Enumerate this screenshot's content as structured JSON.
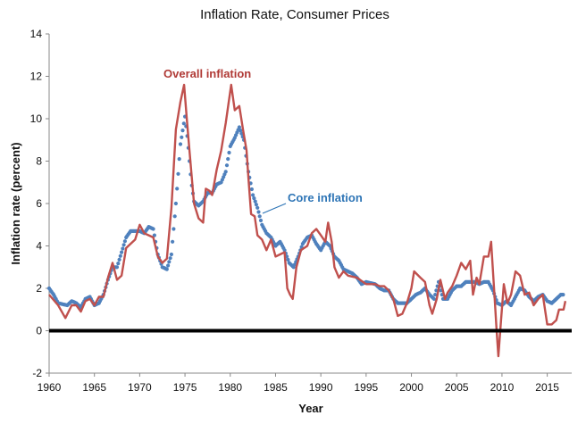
{
  "chart_data": {
    "type": "line",
    "title": "Inflation Rate, Consumer Prices",
    "xlabel": "Year",
    "ylabel": "Inflation rate (percent)",
    "xlim": [
      1960,
      2017.7
    ],
    "ylim": [
      -2,
      14
    ],
    "x_ticks": [
      1960,
      1965,
      1970,
      1975,
      1980,
      1985,
      1990,
      1995,
      2000,
      2005,
      2010,
      2015
    ],
    "y_ticks": [
      -2,
      0,
      2,
      4,
      6,
      8,
      10,
      12,
      14
    ],
    "grid": false,
    "zero_line": true,
    "colors": {
      "overall": "#c0504d",
      "core": "#4f81bd",
      "zero_line": "#000000"
    },
    "annotations": [
      {
        "text": "Overall inflation",
        "series": "overall"
      },
      {
        "text": "Core inflation",
        "series": "core"
      }
    ],
    "series": [
      {
        "name": "Overall inflation",
        "style": "solid-line",
        "x": [
          1960,
          1961,
          1961.8,
          1962.5,
          1963,
          1963.5,
          1964,
          1964.5,
          1965,
          1965.5,
          1966,
          1966.5,
          1967,
          1967.5,
          1968,
          1968.5,
          1969,
          1969.5,
          1970,
          1970.5,
          1971,
          1971.5,
          1972,
          1972.5,
          1973,
          1973.5,
          1974,
          1974.5,
          1974.9,
          1975.2,
          1975.5,
          1976,
          1976.5,
          1977,
          1977.3,
          1977.7,
          1978,
          1978.5,
          1979,
          1979.5,
          1980.1,
          1980.5,
          1981,
          1981.4,
          1981.8,
          1982,
          1982.3,
          1982.7,
          1983,
          1983.5,
          1984,
          1984.5,
          1985,
          1985.5,
          1986,
          1986.3,
          1986.6,
          1986.9,
          1987.3,
          1987.8,
          1988.5,
          1989,
          1989.5,
          1990,
          1990.5,
          1990.8,
          1991.2,
          1991.5,
          1992,
          1992.5,
          1993,
          1994,
          1995,
          1996,
          1996.5,
          1997,
          1997.5,
          1998,
          1998.5,
          1999,
          1999.5,
          2000,
          2000.3,
          2001,
          2001.5,
          2002,
          2002.3,
          2002.8,
          2003.2,
          2003.7,
          2004,
          2004.5,
          2005,
          2005.5,
          2006,
          2006.5,
          2006.8,
          2007.2,
          2007.5,
          2008,
          2008.5,
          2008.8,
          2009.2,
          2009.4,
          2009.6,
          2009.9,
          2010.2,
          2010.6,
          2011,
          2011.5,
          2012,
          2012.5,
          2013,
          2013.5,
          2014,
          2014.5,
          2015,
          2015.5,
          2016,
          2016.3,
          2016.8,
          2017
        ],
        "y": [
          1.7,
          1.2,
          0.6,
          1.2,
          1.2,
          0.9,
          1.4,
          1.5,
          1.2,
          1.6,
          1.6,
          2.5,
          3.2,
          2.4,
          2.6,
          3.9,
          4.1,
          4.3,
          5.0,
          4.6,
          4.5,
          4.4,
          3.5,
          3.2,
          3.4,
          5.8,
          9.5,
          10.8,
          11.6,
          10.0,
          8.5,
          6.0,
          5.3,
          5.1,
          6.7,
          6.6,
          6.4,
          7.6,
          8.5,
          9.8,
          11.6,
          10.4,
          10.6,
          9.5,
          8.5,
          7.2,
          5.5,
          5.4,
          4.5,
          4.3,
          3.8,
          4.3,
          3.5,
          3.6,
          3.7,
          2.0,
          1.7,
          1.5,
          3.0,
          3.8,
          4.0,
          4.6,
          4.8,
          4.5,
          4.2,
          5.1,
          4.2,
          3.0,
          2.5,
          2.8,
          2.6,
          2.5,
          2.2,
          2.2,
          2.1,
          2.1,
          1.9,
          1.5,
          0.7,
          0.8,
          1.3,
          2.0,
          2.8,
          2.5,
          2.3,
          1.2,
          0.8,
          1.5,
          2.4,
          1.5,
          1.8,
          2.1,
          2.6,
          3.2,
          2.9,
          3.3,
          1.7,
          2.5,
          2.2,
          3.5,
          3.5,
          4.2,
          1.5,
          0.1,
          -1.2,
          0.5,
          2.2,
          1.3,
          1.7,
          2.8,
          2.6,
          1.7,
          1.8,
          1.2,
          1.5,
          1.7,
          0.3,
          0.3,
          0.5,
          1.0,
          1.0,
          1.4
        ]
      },
      {
        "name": "Core inflation",
        "style": "dotted",
        "x": [
          1960,
          1960.5,
          1961,
          1962,
          1962.5,
          1963,
          1963.5,
          1964,
          1964.5,
          1965,
          1965.5,
          1966,
          1966.5,
          1967,
          1967.5,
          1968,
          1968.5,
          1969,
          1969.5,
          1970,
          1970.5,
          1971,
          1971.5,
          1972,
          1972.5,
          1973,
          1973.5,
          1974,
          1974.5,
          1975,
          1975.3,
          1975.7,
          1976,
          1976.5,
          1977,
          1977.5,
          1978,
          1978.5,
          1979,
          1979.5,
          1980,
          1980.5,
          1981,
          1981.5,
          1982,
          1982.5,
          1983,
          1983.5,
          1984,
          1984.5,
          1985,
          1985.5,
          1986,
          1986.5,
          1987,
          1987.5,
          1988,
          1988.5,
          1989,
          1989.5,
          1990,
          1990.5,
          1991,
          1991.5,
          1992,
          1992.5,
          1993,
          1993.5,
          1994,
          1994.5,
          1995,
          1996,
          1996.5,
          1997,
          1997.5,
          1998,
          1998.5,
          1999,
          1999.5,
          2000,
          2000.5,
          2001,
          2001.5,
          2002,
          2002.5,
          2003,
          2003.5,
          2004,
          2004.5,
          2005,
          2005.5,
          2006,
          2006.5,
          2007,
          2007.5,
          2008,
          2008.5,
          2009,
          2009.5,
          2010,
          2010.5,
          2011,
          2011.5,
          2012,
          2012.5,
          2013,
          2013.5,
          2014,
          2014.5,
          2015,
          2015.5,
          2016,
          2016.5,
          2016.8
        ],
        "y": [
          2.0,
          1.7,
          1.3,
          1.2,
          1.4,
          1.3,
          1.1,
          1.5,
          1.6,
          1.2,
          1.3,
          1.7,
          2.4,
          3.0,
          3.0,
          3.7,
          4.4,
          4.7,
          4.7,
          4.7,
          4.6,
          4.9,
          4.8,
          3.6,
          3.0,
          2.9,
          3.6,
          6.0,
          8.8,
          10.1,
          9.0,
          7.0,
          6.1,
          5.9,
          6.1,
          6.5,
          6.5,
          6.9,
          7.0,
          7.5,
          8.7,
          9.1,
          9.6,
          9.0,
          7.5,
          6.4,
          5.8,
          5.0,
          4.6,
          4.4,
          4.0,
          4.2,
          3.8,
          3.2,
          3.0,
          3.5,
          4.1,
          4.4,
          4.5,
          4.1,
          3.8,
          4.2,
          4.0,
          3.5,
          3.3,
          2.9,
          2.8,
          2.7,
          2.5,
          2.2,
          2.3,
          2.2,
          2.0,
          1.9,
          1.9,
          1.5,
          1.3,
          1.3,
          1.3,
          1.5,
          1.7,
          1.8,
          2.0,
          1.7,
          1.5,
          2.3,
          1.5,
          1.5,
          1.9,
          2.1,
          2.1,
          2.3,
          2.3,
          2.3,
          2.2,
          2.3,
          2.3,
          1.9,
          1.3,
          1.2,
          1.4,
          1.2,
          1.6,
          2.0,
          1.9,
          1.6,
          1.4,
          1.6,
          1.7,
          1.4,
          1.3,
          1.5,
          1.7,
          1.7
        ]
      }
    ]
  }
}
